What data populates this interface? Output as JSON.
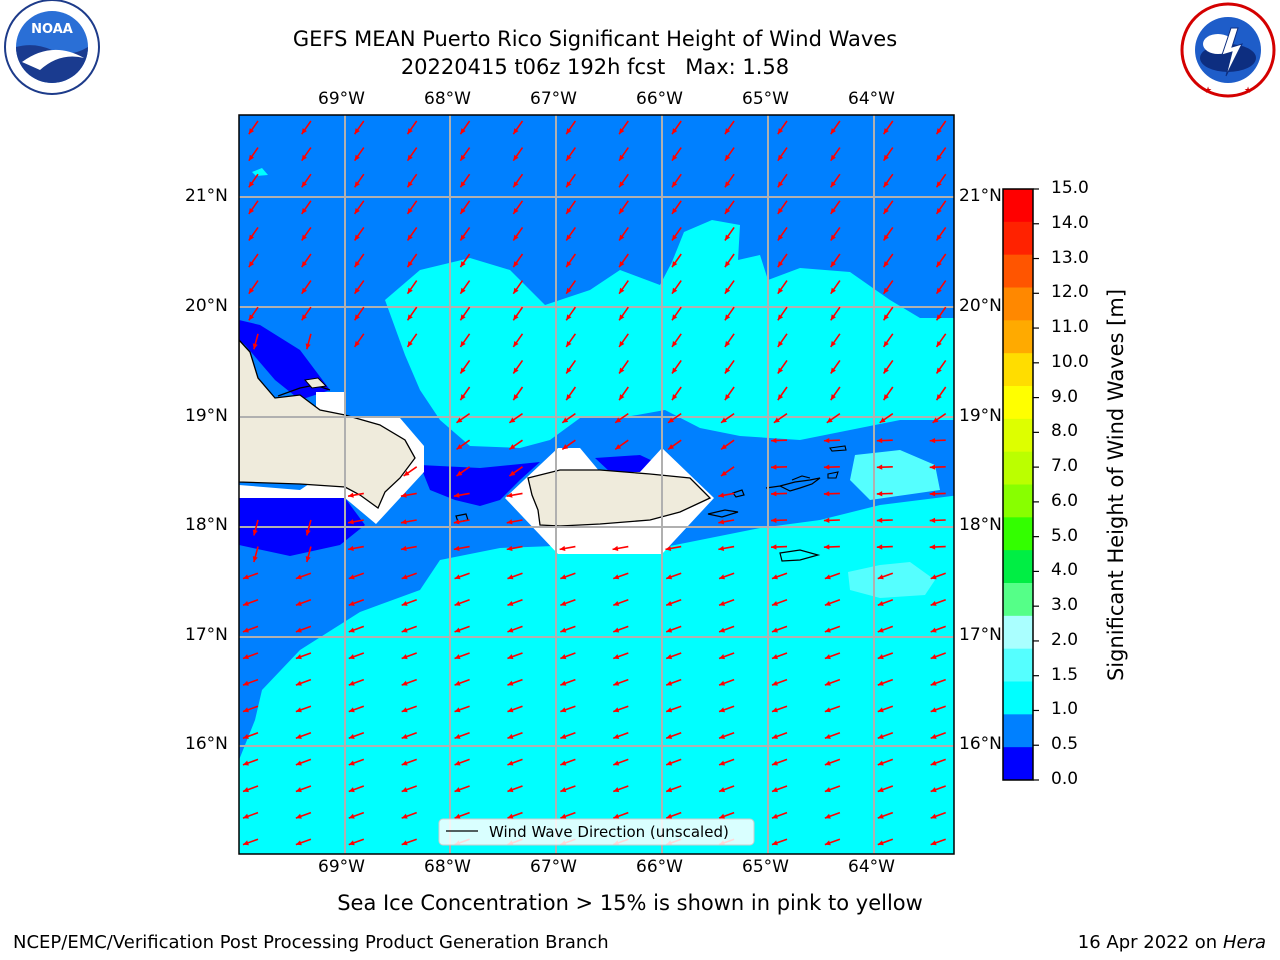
{
  "header": {
    "title_line1": "GEFS MEAN Puerto Rico Significant Height of Wind Waves",
    "title_line2": "20220415 t06z 192h fcst   Max: 1.58"
  },
  "logos": {
    "left_badge_text": "NOAA",
    "left_ring_text": "NATIONAL OCEANIC AND ATMOSPHERIC ADMINISTRATION · U.S. DEPARTMENT OF COMMERCE",
    "right_ring_text": "NATIONAL WEATHER SERVICE"
  },
  "map": {
    "lon_labels": [
      "69°W",
      "68°W",
      "67°W",
      "66°W",
      "65°W",
      "64°W"
    ],
    "lat_labels": [
      "21°N",
      "20°N",
      "19°N",
      "18°N",
      "17°N",
      "16°N"
    ],
    "legend_label": "Wind Wave Direction (unscaled)",
    "colors": {
      "band_0_0_5": "#0000ff",
      "band_0_5_1": "#0080ff",
      "band_1_1_5": "#00ffff",
      "band_1_5_2": "#55ffff",
      "land": "#efebdc",
      "arrows": "#ff0000",
      "grid": "#b0b0b0"
    }
  },
  "colorbar": {
    "label": "Significant Height of Wind Waves [m]",
    "ticks": [
      "15.0",
      "14.0",
      "13.0",
      "12.0",
      "11.0",
      "10.0",
      "9.0",
      "8.0",
      "7.0",
      "6.0",
      "5.0",
      "4.0",
      "3.0",
      "2.0",
      "1.5",
      "1.0",
      "0.5",
      "0.0"
    ],
    "colors": [
      "#ff0000",
      "#ff2200",
      "#ff5500",
      "#ff8800",
      "#ffaa00",
      "#ffdd00",
      "#ffff00",
      "#ddff00",
      "#bbff00",
      "#88ff00",
      "#33ff00",
      "#00ee44",
      "#55ff88",
      "#aaffff",
      "#55ffff",
      "#00ffff",
      "#0080ff",
      "#0000ff"
    ]
  },
  "footer": {
    "sea_ice_note": "Sea Ice Concentration > 15% is shown in pink to yellow",
    "branch": "NCEP/EMC/Verification Post Processing Product Generation Branch",
    "date": "16 Apr 2022 on ",
    "machine": "Hera"
  }
}
